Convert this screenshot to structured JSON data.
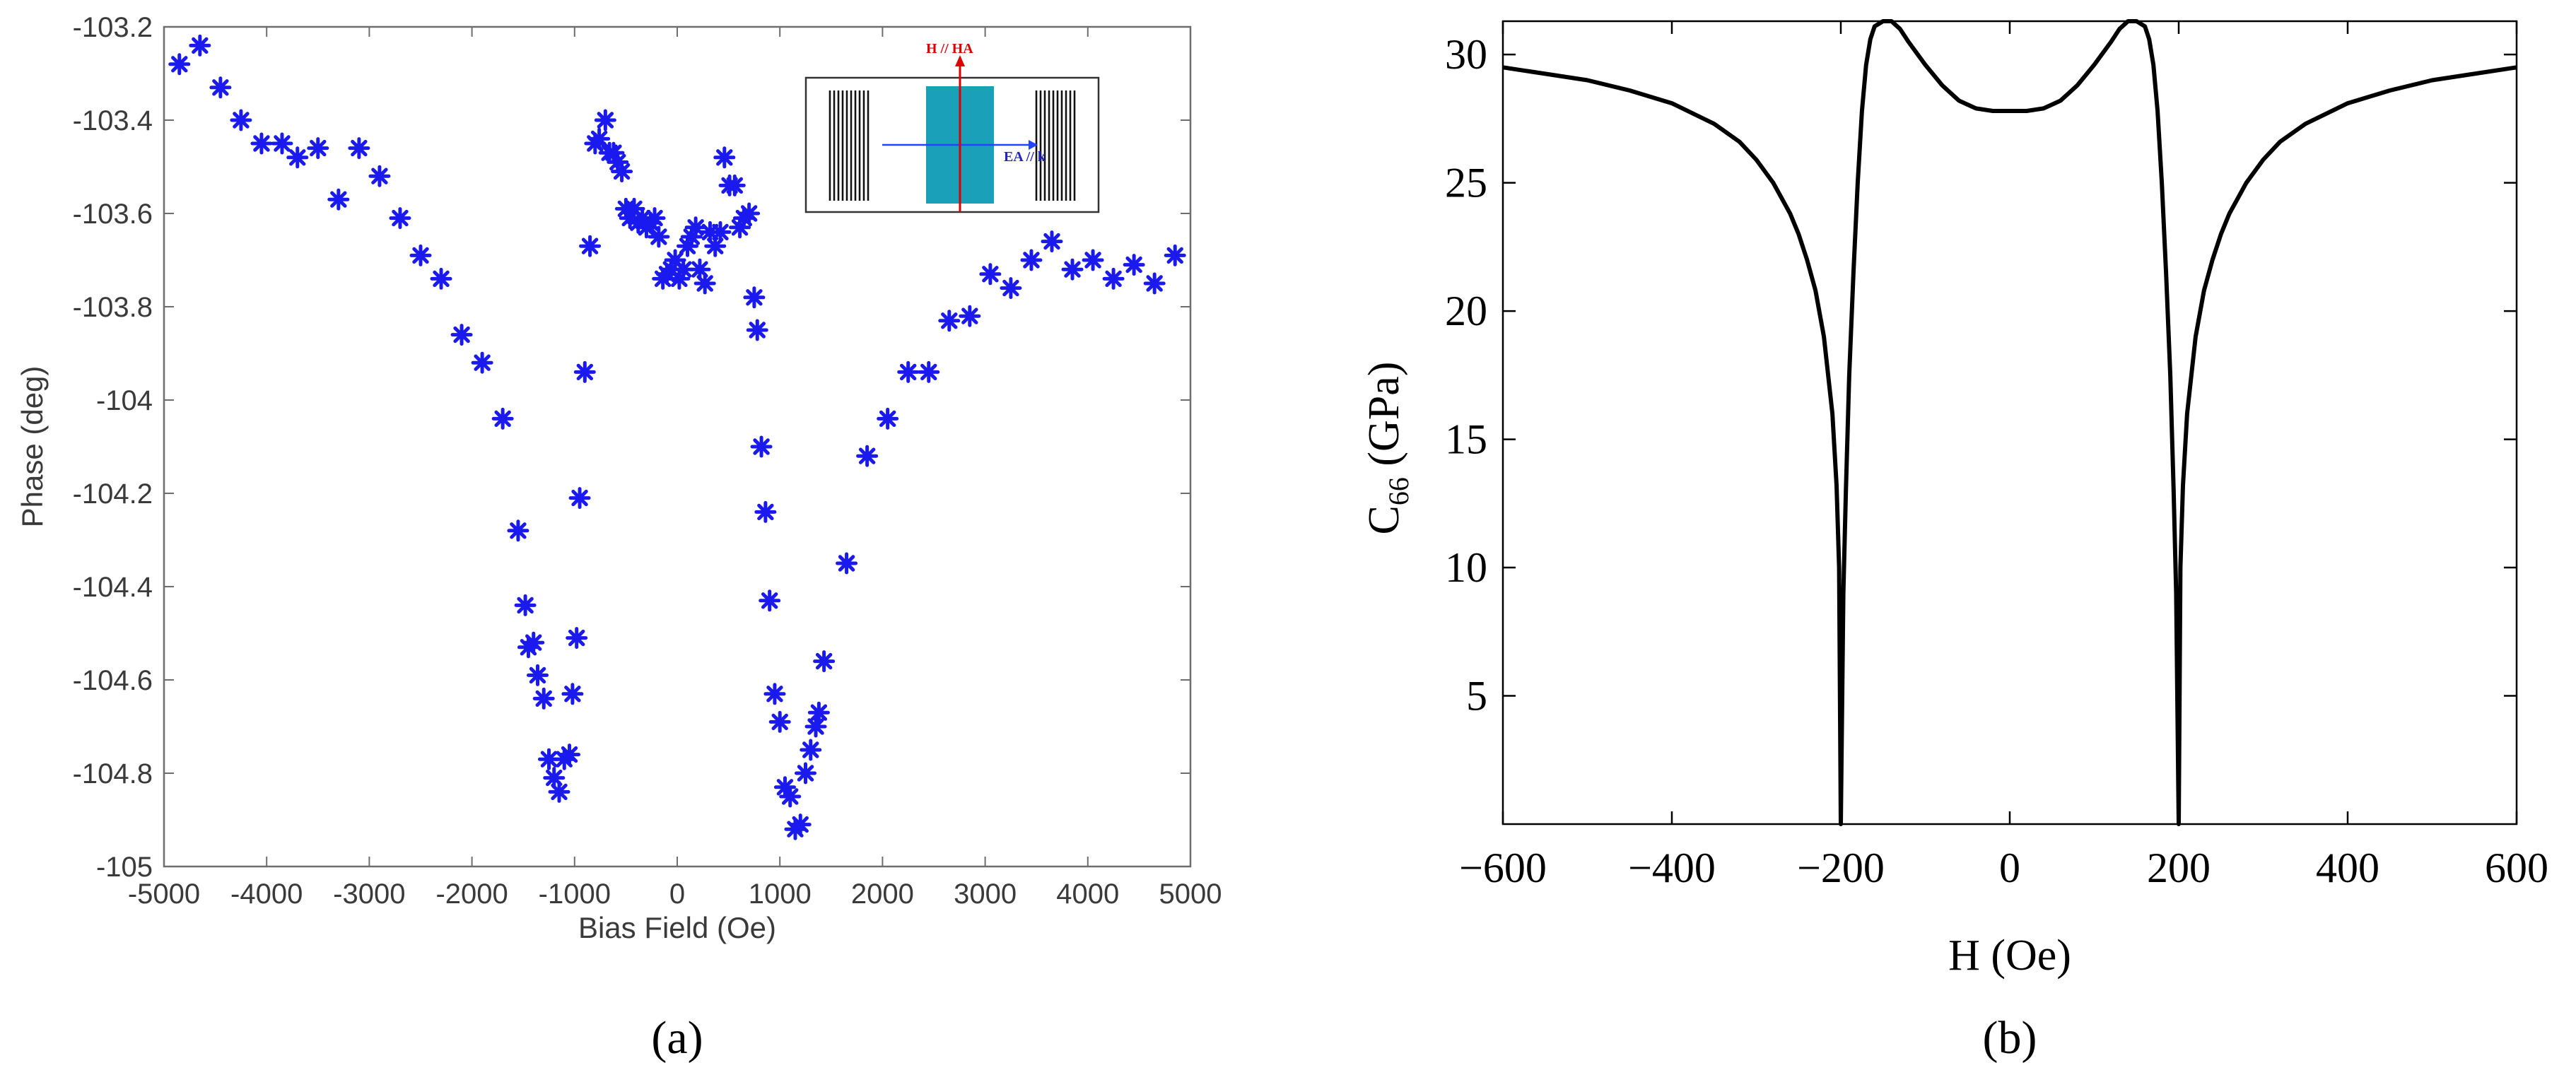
{
  "chart_data": [
    {
      "id": "a",
      "type": "scatter",
      "title": "",
      "xlabel": "Bias Field (Oe)",
      "ylabel": "Phase (deg)",
      "xlim": [
        -5000,
        5000
      ],
      "ylim": [
        -105,
        -103.2
      ],
      "xticks": [
        -5000,
        -4000,
        -3000,
        -2000,
        -1000,
        0,
        1000,
        2000,
        3000,
        4000,
        5000
      ],
      "xtick_labels": [
        "-5000",
        "-4000",
        "-3000",
        "-2000",
        "-1000",
        "0",
        "1000",
        "2000",
        "3000",
        "4000",
        "5000"
      ],
      "yticks": [
        -105,
        -104.8,
        -104.6,
        -104.4,
        -104.2,
        -104,
        -103.8,
        -103.6,
        -103.4,
        -103.2
      ],
      "ytick_labels": [
        "-105",
        "-104.8",
        "-104.6",
        "-104.4",
        "-104.2",
        "-104",
        "-103.8",
        "-103.6",
        "-103.4",
        "-103.2"
      ],
      "marker": "asterisk",
      "marker_color": "#1a1aee",
      "grid": false,
      "caption": "(a)",
      "inset": {
        "label_top": "H // HA",
        "label_arrow": "EA // k",
        "colors": {
          "pad": "#1aa0b8",
          "red_arrow": "#dd0000",
          "blue_arrow": "#2244ff"
        }
      },
      "points": [
        [
          -4850,
          -103.28
        ],
        [
          -4650,
          -103.24
        ],
        [
          -4450,
          -103.33
        ],
        [
          -4250,
          -103.4
        ],
        [
          -4050,
          -103.45
        ],
        [
          -3850,
          -103.45
        ],
        [
          -3700,
          -103.48
        ],
        [
          -3500,
          -103.46
        ],
        [
          -3100,
          -103.46
        ],
        [
          -3300,
          -103.57
        ],
        [
          -2900,
          -103.52
        ],
        [
          -2700,
          -103.61
        ],
        [
          -2500,
          -103.69
        ],
        [
          -2300,
          -103.74
        ],
        [
          -2100,
          -103.86
        ],
        [
          -1900,
          -103.92
        ],
        [
          -1700,
          -104.04
        ],
        [
          -1550,
          -104.28
        ],
        [
          -1480,
          -104.44
        ],
        [
          -1450,
          -104.53
        ],
        [
          -1400,
          -104.52
        ],
        [
          -1360,
          -104.59
        ],
        [
          -1300,
          -104.64
        ],
        [
          -1250,
          -104.77
        ],
        [
          -1200,
          -104.81
        ],
        [
          -1150,
          -104.84
        ],
        [
          -1100,
          -104.77
        ],
        [
          -1050,
          -104.76
        ],
        [
          -1020,
          -104.63
        ],
        [
          -980,
          -104.51
        ],
        [
          -950,
          -104.21
        ],
        [
          -900,
          -103.94
        ],
        [
          -850,
          -103.67
        ],
        [
          -800,
          -103.45
        ],
        [
          -760,
          -103.44
        ],
        [
          -700,
          -103.4
        ],
        [
          -660,
          -103.47
        ],
        [
          -620,
          -103.47
        ],
        [
          -580,
          -103.49
        ],
        [
          -540,
          -103.51
        ],
        [
          -500,
          -103.59
        ],
        [
          -460,
          -103.61
        ],
        [
          -420,
          -103.59
        ],
        [
          -380,
          -103.62
        ],
        [
          -340,
          -103.61
        ],
        [
          -300,
          -103.63
        ],
        [
          -260,
          -103.62
        ],
        [
          -220,
          -103.61
        ],
        [
          -180,
          -103.65
        ],
        [
          -140,
          -103.74
        ],
        [
          -100,
          -103.73
        ],
        [
          -60,
          -103.72
        ],
        [
          -20,
          -103.7
        ],
        [
          20,
          -103.74
        ],
        [
          60,
          -103.72
        ],
        [
          100,
          -103.67
        ],
        [
          140,
          -103.65
        ],
        [
          180,
          -103.63
        ],
        [
          220,
          -103.72
        ],
        [
          270,
          -103.75
        ],
        [
          320,
          -103.64
        ],
        [
          370,
          -103.67
        ],
        [
          420,
          -103.64
        ],
        [
          460,
          -103.48
        ],
        [
          510,
          -103.54
        ],
        [
          560,
          -103.54
        ],
        [
          610,
          -103.63
        ],
        [
          650,
          -103.61
        ],
        [
          700,
          -103.6
        ],
        [
          750,
          -103.78
        ],
        [
          780,
          -103.85
        ],
        [
          820,
          -104.1
        ],
        [
          860,
          -104.24
        ],
        [
          900,
          -104.43
        ],
        [
          950,
          -104.63
        ],
        [
          1000,
          -104.69
        ],
        [
          1050,
          -104.83
        ],
        [
          1100,
          -104.85
        ],
        [
          1150,
          -104.92
        ],
        [
          1200,
          -104.91
        ],
        [
          1250,
          -104.8
        ],
        [
          1300,
          -104.75
        ],
        [
          1350,
          -104.7
        ],
        [
          1380,
          -104.67
        ],
        [
          1430,
          -104.56
        ],
        [
          1650,
          -104.35
        ],
        [
          1850,
          -104.12
        ],
        [
          2050,
          -104.04
        ],
        [
          2250,
          -103.94
        ],
        [
          2450,
          -103.94
        ],
        [
          2650,
          -103.83
        ],
        [
          2850,
          -103.82
        ],
        [
          3050,
          -103.73
        ],
        [
          3250,
          -103.76
        ],
        [
          3450,
          -103.7
        ],
        [
          3650,
          -103.66
        ],
        [
          3850,
          -103.72
        ],
        [
          4050,
          -103.7
        ],
        [
          4250,
          -103.74
        ],
        [
          4450,
          -103.71
        ],
        [
          4650,
          -103.75
        ],
        [
          4850,
          -103.69
        ]
      ]
    },
    {
      "id": "b",
      "type": "line",
      "title": "",
      "xlabel": "H (Oe)",
      "ylabel_main": "C",
      "ylabel_sub": "66",
      "ylabel_rest": " (GPa)",
      "xlim": [
        -600,
        600
      ],
      "ylim": [
        0,
        31.3
      ],
      "xticks": [
        -600,
        -400,
        -200,
        0,
        200,
        400,
        600
      ],
      "xtick_labels": [
        "−600",
        "−400",
        "−200",
        "0",
        "200",
        "400",
        "600"
      ],
      "yticks": [
        5,
        10,
        15,
        20,
        25,
        30
      ],
      "ytick_labels": [
        "5",
        "10",
        "15",
        "20",
        "25",
        "30"
      ],
      "line_color": "#000000",
      "grid": false,
      "caption": "(b)",
      "series": [
        {
          "name": "C66",
          "x": [
            -600,
            -550,
            -500,
            -450,
            -400,
            -350,
            -320,
            -300,
            -280,
            -260,
            -250,
            -240,
            -230,
            -220,
            -210,
            -205,
            -202,
            -200,
            -197,
            -194,
            -190,
            -185,
            -180,
            -175,
            -170,
            -165,
            -160,
            -150,
            -140,
            -130,
            -120,
            -100,
            -80,
            -60,
            -40,
            -20,
            0,
            20,
            40,
            60,
            80,
            100,
            120,
            130,
            140,
            150,
            160,
            165,
            170,
            175,
            180,
            185,
            190,
            194,
            197,
            200,
            202,
            205,
            210,
            220,
            230,
            240,
            250,
            260,
            280,
            300,
            320,
            350,
            400,
            450,
            500,
            550,
            600
          ],
          "y": [
            29.5,
            29.25,
            29.0,
            28.6,
            28.1,
            27.3,
            26.6,
            25.9,
            25.0,
            23.8,
            23.0,
            22.0,
            20.8,
            19.0,
            16.0,
            13.2,
            10.0,
            0.0,
            9.0,
            13.0,
            17.5,
            21.5,
            25.0,
            27.8,
            29.6,
            30.6,
            31.1,
            31.4,
            31.3,
            31.0,
            30.5,
            29.6,
            28.8,
            28.2,
            27.9,
            27.8,
            27.8,
            27.8,
            27.9,
            28.2,
            28.8,
            29.6,
            30.5,
            31.0,
            31.3,
            31.4,
            31.1,
            30.6,
            29.6,
            27.8,
            25.0,
            21.5,
            17.5,
            13.0,
            9.0,
            0.0,
            10.0,
            13.2,
            16.0,
            19.0,
            20.8,
            22.0,
            23.0,
            23.8,
            25.0,
            25.9,
            26.6,
            27.3,
            28.1,
            28.6,
            29.0,
            29.25,
            29.5
          ]
        }
      ]
    }
  ]
}
